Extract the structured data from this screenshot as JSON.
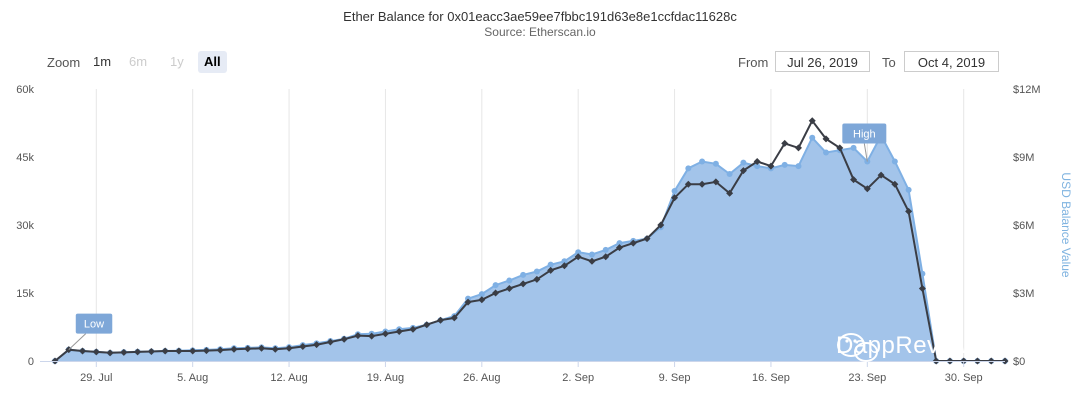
{
  "header": {
    "title": "Ether Balance for 0x01eacc3ae59ee7fbbc191d63e8e1ccfdac11628c",
    "subtitle": "Source: Etherscan.io"
  },
  "zoom": {
    "label": "Zoom",
    "buttons": [
      {
        "label": "1m",
        "state": "normal"
      },
      {
        "label": "6m",
        "state": "disabled"
      },
      {
        "label": "1y",
        "state": "disabled"
      },
      {
        "label": "All",
        "state": "active"
      }
    ]
  },
  "range": {
    "from_label": "From",
    "from_value": "Jul 26, 2019",
    "to_label": "To",
    "to_value": "Oct 4, 2019"
  },
  "watermark": {
    "text": "DappReview",
    "icon": "wechat-icon"
  },
  "chart_data": {
    "type": "line",
    "x_ticks": [
      "29. Jul",
      "5. Aug",
      "12. Aug",
      "19. Aug",
      "26. Aug",
      "2. Sep",
      "9. Sep",
      "16. Sep",
      "23. Sep",
      "30. Sep"
    ],
    "y_left": {
      "ticks": [
        "0",
        "15k",
        "30k",
        "45k",
        "60k"
      ],
      "ylim": [
        0,
        60000
      ]
    },
    "y_right": {
      "label": "USD Balance Value",
      "ticks": [
        "$0",
        "$3M",
        "$6M",
        "$9M",
        "$12M"
      ],
      "ylim": [
        0,
        12000000
      ]
    },
    "x_start": "2019-07-26",
    "grid": "vertical",
    "colors": {
      "area": "#a3c4ea",
      "area_line": "#7fb0e4",
      "ether_line": "#3a3d45",
      "flag": "#7ea7d8",
      "axis_right_label": "#7fb3e0"
    },
    "flags": [
      {
        "label": "Low",
        "series": "usd",
        "index": 1
      },
      {
        "label": "High",
        "series": "usd",
        "index": 59
      }
    ],
    "series": [
      {
        "name": "",
        "axis": "left",
        "values": [
          0,
          2500,
          2200,
          2000,
          1800,
          1900,
          2000,
          2100,
          2200,
          2200,
          2200,
          2300,
          2400,
          2600,
          2700,
          2800,
          2600,
          2800,
          3200,
          3600,
          4200,
          4800,
          5600,
          5500,
          6000,
          6500,
          7000,
          8000,
          9000,
          9500,
          13000,
          13500,
          15000,
          16000,
          17000,
          18000,
          20000,
          21000,
          23000,
          22000,
          23000,
          25000,
          26000,
          27000,
          30000,
          36000,
          39000,
          39000,
          39500,
          37000,
          42000,
          44000,
          43000,
          48000,
          47000,
          53000,
          49000,
          47000,
          40000,
          38000,
          41000,
          39000,
          33000,
          16000,
          0,
          0,
          0,
          0,
          0,
          0
        ]
      },
      {
        "name": "",
        "axis": "right",
        "values": [
          0,
          500000,
          440000,
          400000,
          360000,
          390000,
          410000,
          420000,
          440000,
          450000,
          470000,
          490000,
          520000,
          560000,
          580000,
          600000,
          560000,
          610000,
          700000,
          780000,
          880000,
          980000,
          1180000,
          1200000,
          1300000,
          1400000,
          1460000,
          1600000,
          1800000,
          1980000,
          2750000,
          2950000,
          3350000,
          3550000,
          3800000,
          3950000,
          4250000,
          4400000,
          4800000,
          4700000,
          4900000,
          5200000,
          5300000,
          5400000,
          5900000,
          7500000,
          8500000,
          8800000,
          8700000,
          8250000,
          8750000,
          8600000,
          8500000,
          8650000,
          8600000,
          9850000,
          9200000,
          9300000,
          9400000,
          8800000,
          9950000,
          8800000,
          7550000,
          3850000,
          0,
          0,
          0,
          0,
          0,
          0
        ]
      }
    ]
  }
}
